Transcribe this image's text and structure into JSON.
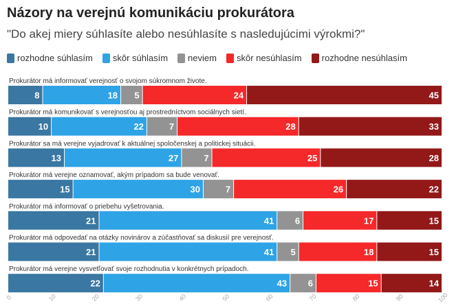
{
  "title": "Názory na verejnú komunikáciu prokurátora",
  "subtitle": "\"Do akej miery súhlasíte alebo nesúhlasíte s nasledujúcimi výrokmi?\"",
  "chart_data": {
    "type": "bar",
    "stacked": true,
    "orientation": "horizontal",
    "xlim": [
      0,
      100
    ],
    "xticks": [
      0,
      10,
      20,
      30,
      40,
      50,
      60,
      70,
      80,
      90,
      100
    ],
    "legend_position": "top",
    "categories": [
      "Prokurátor má informovať verejnosť o svojom súkromnom živote.",
      "Prokurátor má komunikovať s verejnosťou aj prostredníctvom sociálnych sietí.",
      "Prokurátor sa má verejne vyjadrovať k aktuálnej spoločenskej a politickej situácii.",
      "Prokurátor má verejne oznamovať, akým prípadom sa bude venovať.",
      "Prokurátor má informovať o priebehu vyšetrovania.",
      "Prokurátor má odpovedať na otázky novinárov a zúčastňovať sa diskusií pre verejnosť.",
      "Prokurátor má verejne vysvetľovať svoje rozhodnutia v konkrétnych prípadoch."
    ],
    "series": [
      {
        "name": "rozhodne súhlasím",
        "color": "#3a77a3",
        "values": [
          8,
          10,
          13,
          15,
          21,
          21,
          22
        ]
      },
      {
        "name": "skôr súhlasím",
        "color": "#2ea3e6",
        "values": [
          18,
          22,
          27,
          30,
          41,
          41,
          43
        ]
      },
      {
        "name": "neviem",
        "color": "#939393",
        "values": [
          5,
          7,
          7,
          7,
          6,
          5,
          6
        ]
      },
      {
        "name": "skôr nesúhlasím",
        "color": "#f5282a",
        "values": [
          24,
          28,
          25,
          26,
          17,
          18,
          15
        ]
      },
      {
        "name": "rozhodne nesúhlasím",
        "color": "#931818",
        "values": [
          45,
          33,
          28,
          22,
          15,
          15,
          14
        ]
      }
    ]
  }
}
